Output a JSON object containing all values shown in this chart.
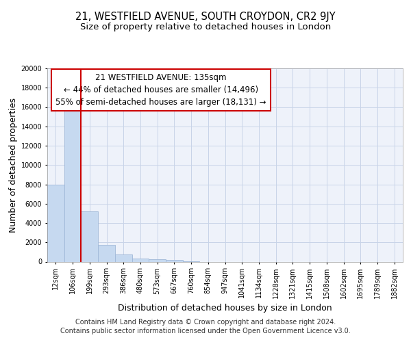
{
  "title": "21, WESTFIELD AVENUE, SOUTH CROYDON, CR2 9JY",
  "subtitle": "Size of property relative to detached houses in London",
  "xlabel": "Distribution of detached houses by size in London",
  "ylabel": "Number of detached properties",
  "footer1": "Contains HM Land Registry data © Crown copyright and database right 2024.",
  "footer2": "Contains public sector information licensed under the Open Government Licence v3.0.",
  "annotation_line1": "21 WESTFIELD AVENUE: 135sqm",
  "annotation_line2": "← 44% of detached houses are smaller (14,496)",
  "annotation_line3": "55% of semi-detached houses are larger (18,131) →",
  "bar_color": "#c6d9f0",
  "bar_edge_color": "#a0b8d8",
  "red_line_color": "#cc0000",
  "annotation_box_color": "#cc0000",
  "grid_color": "#c8d4e8",
  "background_color": "#eef2fa",
  "categories": [
    "12sqm",
    "106sqm",
    "199sqm",
    "293sqm",
    "386sqm",
    "480sqm",
    "573sqm",
    "667sqm",
    "760sqm",
    "854sqm",
    "947sqm",
    "1041sqm",
    "1134sqm",
    "1228sqm",
    "1321sqm",
    "1415sqm",
    "1508sqm",
    "1602sqm",
    "1695sqm",
    "1789sqm",
    "1882sqm"
  ],
  "values": [
    8000,
    16500,
    5200,
    1750,
    750,
    350,
    220,
    150,
    50,
    0,
    0,
    0,
    0,
    0,
    0,
    0,
    0,
    0,
    0,
    0,
    0
  ],
  "ylim": [
    0,
    20000
  ],
  "yticks": [
    0,
    2000,
    4000,
    6000,
    8000,
    10000,
    12000,
    14000,
    16000,
    18000,
    20000
  ],
  "red_line_x": 1.5,
  "title_fontsize": 10.5,
  "subtitle_fontsize": 9.5,
  "axis_label_fontsize": 9,
  "tick_fontsize": 7,
  "annotation_fontsize": 8.5,
  "footer_fontsize": 7
}
